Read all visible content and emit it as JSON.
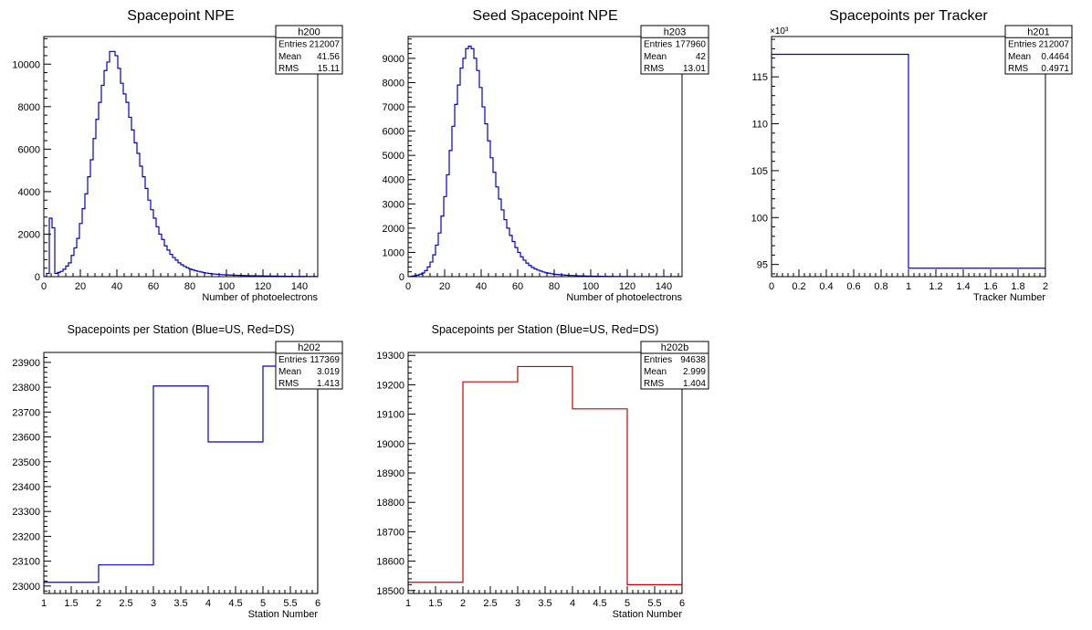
{
  "colors": {
    "blue": "#0000cc",
    "red": "#cc0000",
    "frame": "#000000"
  },
  "chart_data": [
    {
      "id": "h200",
      "type": "histogram",
      "title": "Spacepoint NPE",
      "xlabel": "Number of photoelectrons",
      "ylabel": "",
      "xlim": [
        0,
        150
      ],
      "ylim": [
        0,
        11300
      ],
      "xticks": [
        0,
        20,
        40,
        60,
        80,
        100,
        120,
        140
      ],
      "yticks": [
        0,
        2000,
        4000,
        6000,
        8000,
        10000
      ],
      "multiplier": "",
      "color": "blue",
      "stats": {
        "name": "h200",
        "rows": [
          [
            "Entries",
            "212007"
          ],
          [
            "Mean",
            "41.56"
          ],
          [
            "RMS",
            "15.11"
          ]
        ]
      },
      "edges": [
        0,
        1.5,
        3,
        4.5,
        6,
        7.5,
        9,
        10.5,
        12,
        13.5,
        15,
        16.5,
        18,
        19.5,
        21,
        22.5,
        24,
        25.5,
        27,
        28.5,
        30,
        31.5,
        33,
        34.5,
        36,
        37.5,
        39,
        40.5,
        42,
        43.5,
        45,
        46.5,
        48,
        49.5,
        51,
        52.5,
        54,
        55.5,
        57,
        58.5,
        60,
        61.5,
        63,
        64.5,
        66,
        67.5,
        69,
        70.5,
        72,
        73.5,
        75,
        76.5,
        78,
        79.5,
        81,
        82.5,
        84,
        85.5,
        87,
        88.5,
        90,
        91.5,
        93,
        94.5,
        96,
        97.5,
        99,
        100.5,
        102,
        103.5,
        105,
        106.5,
        108,
        109.5,
        111,
        112.5,
        114,
        115.5,
        117,
        118.5,
        120,
        121.5,
        123,
        124.5,
        126,
        127.5,
        129,
        130.5,
        132,
        133.5,
        135,
        136.5,
        138,
        139.5,
        141,
        142.5,
        144,
        145.5,
        147,
        148.5,
        150
      ],
      "values": [
        0,
        150,
        2750,
        2300,
        150,
        200,
        250,
        350,
        500,
        650,
        1000,
        1350,
        1800,
        2500,
        3200,
        3900,
        4700,
        5500,
        6500,
        7400,
        8200,
        9000,
        9700,
        10100,
        10600,
        10600,
        10400,
        9800,
        9100,
        8600,
        8200,
        7500,
        6900,
        6300,
        5800,
        5200,
        4700,
        4150,
        3600,
        3150,
        2750,
        2350,
        2000,
        1750,
        1450,
        1250,
        1050,
        900,
        780,
        650,
        560,
        480,
        420,
        360,
        320,
        280,
        250,
        220,
        190,
        170,
        150,
        130,
        120,
        110,
        100,
        90,
        85,
        80,
        75,
        70,
        65,
        60,
        55,
        50,
        48,
        45,
        43,
        40,
        38,
        36,
        34,
        32,
        30,
        28,
        26,
        24,
        22,
        20,
        18,
        16,
        15,
        14,
        13,
        12,
        11,
        10,
        9,
        8,
        7,
        6
      ]
    },
    {
      "id": "h203",
      "type": "histogram",
      "title": "Seed Spacepoint NPE",
      "xlabel": "Number of photoelectrons",
      "ylabel": "",
      "xlim": [
        0,
        150
      ],
      "ylim": [
        0,
        9900
      ],
      "xticks": [
        0,
        20,
        40,
        60,
        80,
        100,
        120,
        140
      ],
      "yticks": [
        0,
        1000,
        2000,
        3000,
        4000,
        5000,
        6000,
        7000,
        8000,
        9000
      ],
      "multiplier": "",
      "color": "blue",
      "stats": {
        "name": "h203",
        "rows": [
          [
            "Entries",
            "177960"
          ],
          [
            "Mean",
            "42"
          ],
          [
            "RMS",
            "13.01"
          ]
        ]
      },
      "edges": [
        0,
        1.5,
        3,
        4.5,
        6,
        7.5,
        9,
        10.5,
        12,
        13.5,
        15,
        16.5,
        18,
        19.5,
        21,
        22.5,
        24,
        25.5,
        27,
        28.5,
        30,
        31.5,
        33,
        34.5,
        36,
        37.5,
        39,
        40.5,
        42,
        43.5,
        45,
        46.5,
        48,
        49.5,
        51,
        52.5,
        54,
        55.5,
        57,
        58.5,
        60,
        61.5,
        63,
        64.5,
        66,
        67.5,
        69,
        70.5,
        72,
        73.5,
        75,
        76.5,
        78,
        79.5,
        81,
        82.5,
        84,
        85.5,
        87,
        88.5,
        90,
        91.5,
        93,
        94.5,
        96,
        97.5,
        99,
        100.5,
        102,
        103.5,
        105,
        106.5,
        108,
        109.5,
        111,
        112.5,
        114,
        115.5,
        117,
        118.5,
        120,
        121.5,
        123,
        124.5,
        126,
        127.5,
        129,
        130.5,
        132,
        133.5,
        135,
        136.5,
        138,
        139.5,
        141,
        142.5,
        144,
        145.5,
        147,
        148.5,
        150
      ],
      "values": [
        0,
        20,
        40,
        60,
        100,
        150,
        250,
        400,
        600,
        900,
        1300,
        1800,
        2500,
        3300,
        4200,
        5200,
        6200,
        7100,
        7900,
        8600,
        9000,
        9400,
        9500,
        9400,
        9000,
        8500,
        7800,
        7000,
        6300,
        5600,
        4900,
        4300,
        3700,
        3200,
        2750,
        2350,
        2000,
        1700,
        1450,
        1200,
        1000,
        820,
        680,
        560,
        460,
        380,
        320,
        270,
        230,
        190,
        160,
        140,
        120,
        100,
        90,
        80,
        70,
        62,
        55,
        50,
        45,
        40,
        36,
        32,
        28,
        25,
        22,
        20,
        18,
        16,
        14,
        12,
        11,
        10,
        9,
        8,
        7,
        6,
        6,
        5,
        5,
        4,
        4,
        3,
        3,
        3,
        2,
        2,
        2,
        2,
        1,
        1,
        1,
        1,
        1,
        1,
        1,
        1,
        1,
        1
      ]
    },
    {
      "id": "h201",
      "type": "histogram",
      "title": "Spacepoints per Tracker",
      "xlabel": "Tracker Number",
      "ylabel": "",
      "xlim": [
        0,
        2
      ],
      "ylim": [
        93.7,
        119.3
      ],
      "xticks": [
        0,
        0.2,
        0.4,
        0.6,
        0.8,
        1,
        1.2,
        1.4,
        1.6,
        1.8,
        2
      ],
      "yticks": [
        95,
        100,
        105,
        110,
        115
      ],
      "multiplier": "×10³",
      "color": "blue",
      "stats": {
        "name": "h201",
        "rows": [
          [
            "Entries",
            "212007"
          ],
          [
            "Mean",
            "0.4464"
          ],
          [
            "RMS",
            "0.4971"
          ]
        ]
      },
      "edges": [
        0,
        1,
        2
      ],
      "values": [
        117.4,
        94.6
      ]
    },
    {
      "id": "h202",
      "type": "histogram",
      "title": "Spacepoints per Station (Blue=US, Red=DS)",
      "xlabel": "Station Number",
      "ylabel": "",
      "xlim": [
        1,
        6
      ],
      "ylim": [
        22970,
        23940
      ],
      "xticks": [
        1,
        1.5,
        2,
        2.5,
        3,
        3.5,
        4,
        4.5,
        5,
        5.5,
        6
      ],
      "yticks": [
        23000,
        23100,
        23200,
        23300,
        23400,
        23500,
        23600,
        23700,
        23800,
        23900
      ],
      "multiplier": "",
      "color": "blue",
      "stats": {
        "name": "h202",
        "rows": [
          [
            "Entries",
            "117369"
          ],
          [
            "Mean",
            "3.019"
          ],
          [
            "RMS",
            "1.413"
          ]
        ]
      },
      "edges": [
        1,
        2,
        3,
        4,
        5,
        6
      ],
      "values": [
        23015,
        23085,
        23805,
        23580,
        23885
      ]
    },
    {
      "id": "h202b",
      "type": "histogram",
      "title": "Spacepoints per Station (Blue=US, Red=DS)",
      "xlabel": "Station Number",
      "ylabel": "",
      "xlim": [
        1,
        6
      ],
      "ylim": [
        18490,
        19310
      ],
      "xticks": [
        1,
        1.5,
        2,
        2.5,
        3,
        3.5,
        4,
        4.5,
        5,
        5.5,
        6
      ],
      "yticks": [
        18500,
        18600,
        18700,
        18800,
        18900,
        19000,
        19100,
        19200,
        19300
      ],
      "multiplier": "",
      "color": "red",
      "stats": {
        "name": "h202b",
        "rows": [
          [
            "Entries",
            "94638"
          ],
          [
            "Mean",
            "2.999"
          ],
          [
            "RMS",
            "1.404"
          ]
        ]
      },
      "edges": [
        1,
        2,
        3,
        4,
        5,
        6
      ],
      "values": [
        18528,
        19210,
        19262,
        19118,
        18520
      ]
    }
  ]
}
